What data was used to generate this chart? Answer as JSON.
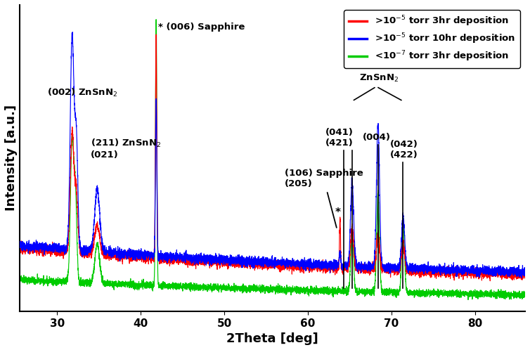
{
  "xlabel": "2Theta [deg]",
  "ylabel": "Intensity [a.u.]",
  "xlim": [
    25.5,
    86
  ],
  "ylim": [
    0,
    1.05
  ],
  "colors": {
    "red": "#FF0000",
    "blue": "#0000FF",
    "green": "#00CC00"
  },
  "legend_labels": [
    ">10$^{-5}$ torr 3hr deposition",
    ">10$^{-5}$ torr 10hr deposition",
    "<10$^{-7}$ torr 3hr deposition"
  ],
  "xticks": [
    30,
    40,
    50,
    60,
    70,
    80
  ]
}
